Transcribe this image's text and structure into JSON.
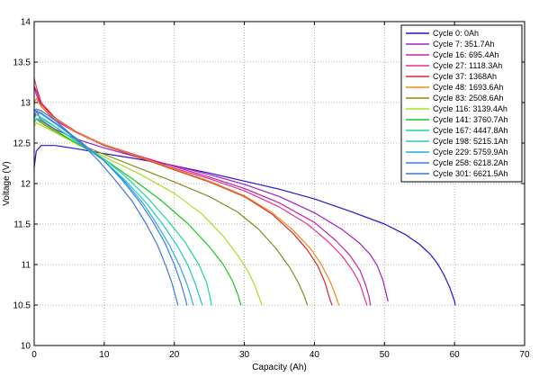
{
  "chart_data": {
    "type": "line",
    "title": "",
    "xlabel": "Capacity (Ah)",
    "ylabel": "Voltage (V)",
    "xlim": [
      0,
      70
    ],
    "ylim": [
      10,
      14
    ],
    "xticks": [
      0,
      10,
      20,
      30,
      40,
      50,
      60,
      70
    ],
    "yticks": [
      10,
      10.5,
      11,
      11.5,
      12,
      12.5,
      13,
      13.5,
      14
    ],
    "xtick_labels": [
      "0",
      "10",
      "20",
      "30",
      "40",
      "50",
      "60",
      "70"
    ],
    "ytick_labels": [
      "10",
      "10.5",
      "11",
      "11.5",
      "12",
      "12.5",
      "13",
      "13.5",
      "14"
    ],
    "grid": true,
    "legend_position": "top-right",
    "series": [
      {
        "name": "Cycle 0: 0Ah",
        "color": "#2b12c8",
        "x": [
          0,
          0.3,
          1,
          3,
          6,
          10,
          15,
          20,
          25,
          30,
          35,
          40,
          45,
          50,
          53,
          55,
          56.5,
          57.5,
          58.5,
          59.3,
          60,
          60.1
        ],
        "y": [
          12.2,
          12.4,
          12.47,
          12.47,
          12.43,
          12.37,
          12.3,
          12.22,
          12.13,
          12.03,
          11.93,
          11.81,
          11.66,
          11.5,
          11.37,
          11.25,
          11.13,
          11.02,
          10.87,
          10.72,
          10.55,
          10.5
        ]
      },
      {
        "name": "Cycle 7: 351.7Ah",
        "color": "#a11fcb",
        "x": [
          0,
          0.3,
          1,
          3,
          6,
          10,
          15,
          20,
          25,
          30,
          35,
          40,
          44,
          46.5,
          48,
          49,
          49.8,
          50.3,
          50.5
        ],
        "y": [
          12.8,
          12.9,
          12.78,
          12.67,
          12.55,
          12.44,
          12.32,
          12.22,
          12.11,
          11.99,
          11.84,
          11.64,
          11.43,
          11.26,
          11.12,
          10.98,
          10.8,
          10.62,
          10.55
        ]
      },
      {
        "name": "Cycle 16: 695.4Ah",
        "color": "#c61fa8",
        "x": [
          0,
          0.3,
          1,
          3,
          6,
          10,
          15,
          20,
          25,
          30,
          35,
          40,
          43,
          45,
          46.5,
          47.3,
          47.8,
          48
        ],
        "y": [
          13.2,
          13.1,
          12.95,
          12.78,
          12.63,
          12.48,
          12.34,
          12.21,
          12.08,
          11.94,
          11.76,
          11.52,
          11.3,
          11.12,
          10.93,
          10.75,
          10.6,
          10.5
        ]
      },
      {
        "name": "Cycle 27: 1118.3Ah",
        "color": "#e0338c",
        "x": [
          0,
          0.3,
          1,
          3,
          6,
          10,
          15,
          20,
          25,
          30,
          35,
          39,
          42,
          44,
          45.5,
          46.5,
          47.1,
          47.5
        ],
        "y": [
          13.3,
          13.2,
          13.0,
          12.81,
          12.64,
          12.48,
          12.33,
          12.19,
          12.06,
          11.91,
          11.71,
          11.5,
          11.28,
          11.1,
          10.92,
          10.76,
          10.6,
          10.5
        ]
      },
      {
        "name": "Cycle 37: 1368Ah",
        "color": "#d42a2a",
        "x": [
          0,
          0.3,
          1,
          3,
          6,
          10,
          15,
          20,
          25,
          30,
          34,
          37,
          39,
          40.5,
          41.5,
          42.1,
          42.5
        ],
        "y": [
          13.2,
          13.15,
          12.98,
          12.8,
          12.63,
          12.47,
          12.32,
          12.17,
          12.02,
          11.84,
          11.62,
          11.38,
          11.18,
          10.98,
          10.78,
          10.6,
          10.5
        ]
      },
      {
        "name": "Cycle 48: 1693.6Ah",
        "color": "#ef8a1c",
        "x": [
          0,
          0.3,
          1,
          3,
          6,
          10,
          15,
          20,
          25,
          30,
          34,
          37,
          39.5,
          41,
          42.3,
          43.1,
          43.5
        ],
        "y": [
          13.0,
          13.05,
          12.95,
          12.8,
          12.63,
          12.48,
          12.33,
          12.18,
          12.03,
          11.85,
          11.64,
          11.42,
          11.19,
          11.0,
          10.78,
          10.6,
          10.5
        ]
      },
      {
        "name": "Cycle 83: 2508.6Ah",
        "color": "#8a8a1f",
        "x": [
          0,
          0.3,
          1,
          3,
          6,
          10,
          15,
          20,
          25,
          29,
          32,
          34.5,
          36.5,
          37.8,
          38.6,
          39
        ],
        "y": [
          12.75,
          12.8,
          12.75,
          12.64,
          12.5,
          12.36,
          12.19,
          12.02,
          11.84,
          11.65,
          11.44,
          11.2,
          10.96,
          10.76,
          10.6,
          10.5
        ]
      },
      {
        "name": "Cycle 116: 3139.4Ah",
        "color": "#a6e01f",
        "x": [
          0,
          0.3,
          1,
          3,
          6,
          10,
          15,
          20,
          24,
          27,
          29,
          30.5,
          31.5,
          32.1,
          32.5
        ],
        "y": [
          12.7,
          12.75,
          12.72,
          12.63,
          12.49,
          12.33,
          12.12,
          11.88,
          11.62,
          11.35,
          11.12,
          10.92,
          10.74,
          10.6,
          10.5
        ]
      },
      {
        "name": "Cycle 141: 3760.7Ah",
        "color": "#1fc81f",
        "x": [
          0,
          0.3,
          1,
          3,
          6,
          10,
          14,
          18,
          22,
          25,
          27,
          28.3,
          29.1,
          29.5
        ],
        "y": [
          12.75,
          12.8,
          12.77,
          12.66,
          12.5,
          12.3,
          12.06,
          11.8,
          11.5,
          11.22,
          11.0,
          10.8,
          10.62,
          10.5
        ]
      },
      {
        "name": "Cycle 167: 4447.8Ah",
        "color": "#1fd49a",
        "x": [
          0,
          0.3,
          1,
          3,
          6,
          10,
          13,
          16,
          19,
          21.5,
          23.5,
          24.6,
          25.1,
          25.3
        ],
        "y": [
          12.8,
          12.85,
          12.82,
          12.7,
          12.53,
          12.3,
          12.09,
          11.84,
          11.55,
          11.28,
          11.0,
          10.78,
          10.6,
          10.5
        ]
      },
      {
        "name": "Cycle 198: 5215.1Ah",
        "color": "#1fc8c8",
        "x": [
          0,
          0.3,
          1,
          3,
          6,
          10,
          13,
          16,
          18.5,
          20.5,
          22,
          23,
          23.6,
          24
        ],
        "y": [
          12.75,
          12.8,
          12.8,
          12.7,
          12.52,
          12.28,
          12.04,
          11.76,
          11.48,
          11.22,
          10.98,
          10.76,
          10.6,
          10.5
        ]
      },
      {
        "name": "Cycle 229: 5759.9Ah",
        "color": "#2aaae6",
        "x": [
          0,
          0.3,
          1,
          3,
          6,
          10,
          13,
          15.5,
          17.5,
          19.3,
          20.8,
          21.8,
          22.4,
          22.7
        ],
        "y": [
          12.85,
          12.88,
          12.86,
          12.74,
          12.55,
          12.28,
          12.02,
          11.76,
          11.5,
          11.24,
          10.98,
          10.76,
          10.6,
          10.5
        ]
      },
      {
        "name": "Cycle 258: 6218.2Ah",
        "color": "#3a7fe6",
        "x": [
          0,
          0.3,
          1,
          3,
          6,
          10,
          12.5,
          15,
          17,
          18.7,
          20,
          20.9,
          21.5,
          21.8
        ],
        "y": [
          12.9,
          12.9,
          12.87,
          12.75,
          12.56,
          12.28,
          12.05,
          11.78,
          11.52,
          11.26,
          11.0,
          10.78,
          10.6,
          10.5
        ]
      },
      {
        "name": "Cycle 301: 6621.5Ah",
        "color": "#3f78c8",
        "x": [
          0,
          0.3,
          1,
          3,
          6,
          9,
          11.5,
          14,
          16,
          17.6,
          18.8,
          19.7,
          20.2,
          20.5
        ],
        "y": [
          12.9,
          12.92,
          12.9,
          12.78,
          12.55,
          12.3,
          12.05,
          11.78,
          11.5,
          11.24,
          10.98,
          10.76,
          10.6,
          10.5
        ]
      }
    ]
  }
}
